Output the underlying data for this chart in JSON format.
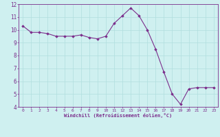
{
  "x": [
    0,
    1,
    2,
    3,
    4,
    5,
    6,
    7,
    8,
    9,
    10,
    11,
    12,
    13,
    14,
    15,
    16,
    17,
    18,
    19,
    20,
    21,
    22,
    23
  ],
  "y": [
    10.3,
    9.8,
    9.8,
    9.7,
    9.5,
    9.5,
    9.5,
    9.6,
    9.4,
    9.3,
    9.5,
    10.5,
    11.1,
    11.7,
    11.1,
    10.0,
    8.5,
    6.7,
    5.0,
    4.2,
    5.4,
    5.5,
    5.5,
    5.5
  ],
  "line_color": "#7b2d8b",
  "marker_color": "#7b2d8b",
  "bg_color": "#cff0f0",
  "grid_color": "#b0dede",
  "xlabel": "Windchill (Refroidissement éolien,°C)",
  "xlim": [
    -0.5,
    23.5
  ],
  "ylim": [
    4,
    12
  ],
  "yticks": [
    4,
    5,
    6,
    7,
    8,
    9,
    10,
    11,
    12
  ],
  "xticks": [
    0,
    1,
    2,
    3,
    4,
    5,
    6,
    7,
    8,
    9,
    10,
    11,
    12,
    13,
    14,
    15,
    16,
    17,
    18,
    19,
    20,
    21,
    22,
    23
  ],
  "label_color": "#7b2d8b",
  "axis_color": "#7b2d8b",
  "tick_color": "#7b2d8b"
}
